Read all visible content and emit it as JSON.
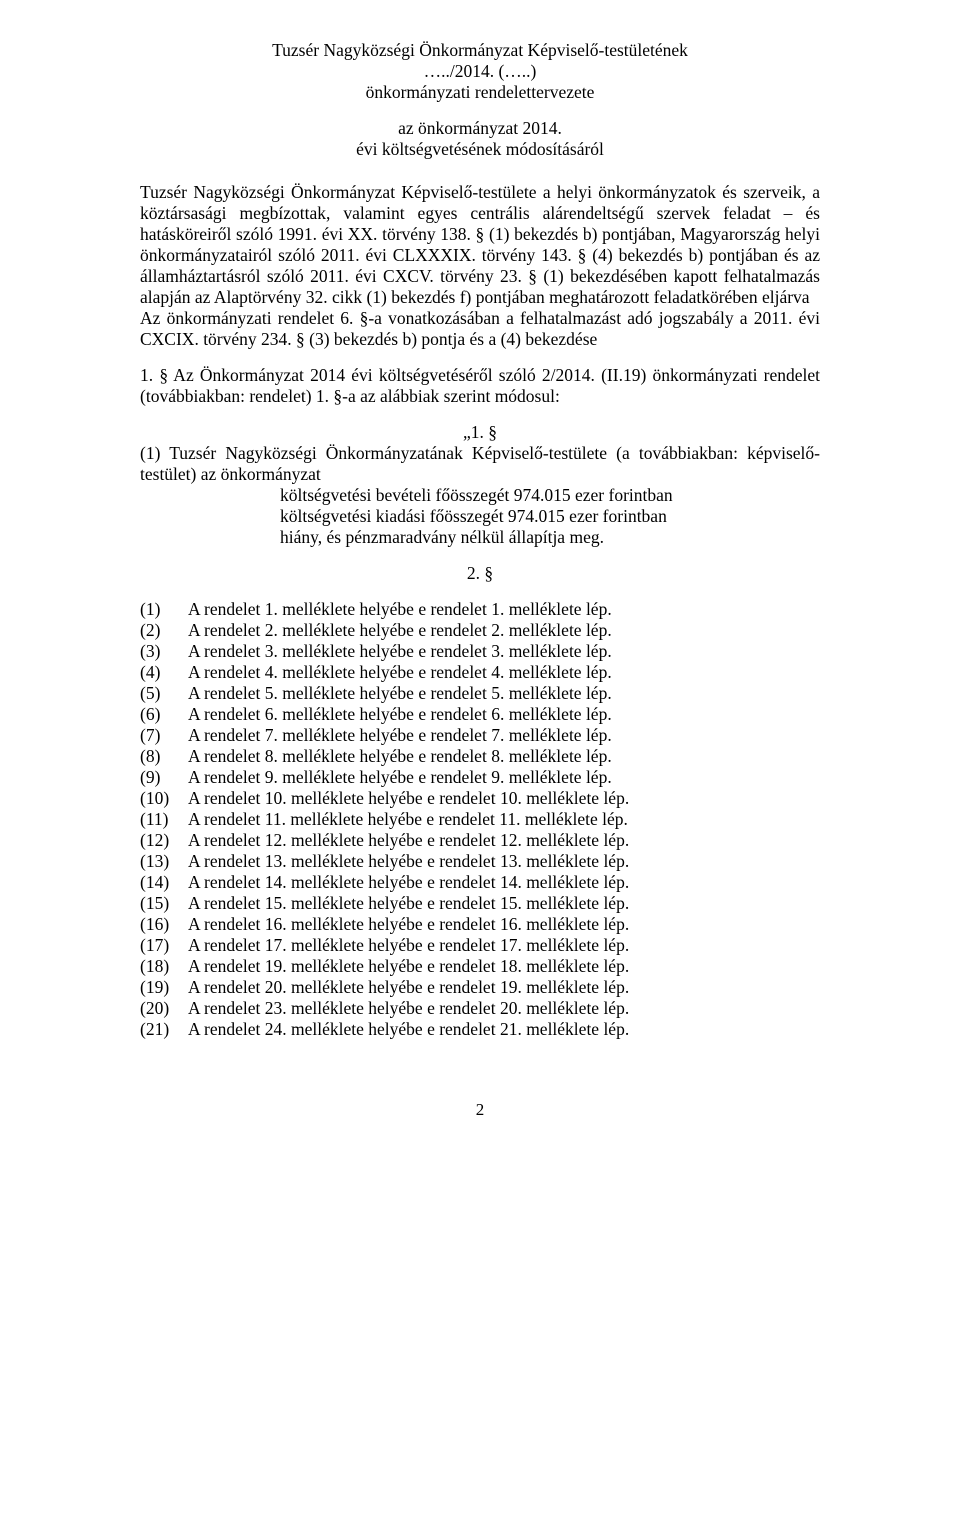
{
  "header": {
    "line1": "Tuzsér Nagyközségi Önkormányzat Képviselő-testületének",
    "line2": "…../2014. (…..)",
    "line3": "önkormányzati rendelettervezete",
    "line4": "az önkormányzat 2014.",
    "line5": "évi költségvetésének módosításáról"
  },
  "body1": "Tuzsér Nagyközségi Önkormányzat Képviselő-testülete a helyi önkormányzatok és szerveik, a köztársasági megbízottak, valamint egyes centrális alárendeltségű szervek feladat – és hatásköreiről szóló 1991. évi XX. törvény 138. § (1) bekezdés b) pontjában, Magyarország helyi önkormányzatairól szóló 2011. évi CLXXXIX. törvény 143. § (4) bekezdés b) pontjában és az államháztartásról szóló 2011. évi CXCV. törvény 23. § (1) bekezdésében kapott felhatalmazás alapján az Alaptörvény 32. cikk (1) bekezdés f) pontjában meghatározott feladatkörében eljárva",
  "body2": "Az önkormányzati rendelet 6. §-a vonatkozásában a felhatalmazást adó jogszabály a 2011. évi CXCIX. törvény 234. § (3) bekezdés b) pontja és a (4) bekezdése",
  "body3": "1. § Az Önkormányzat 2014 évi költségvetéséről szóló 2/2014. (II.19) önkormányzati rendelet (továbbiakban: rendelet) 1. §-a az alábbiak szerint módosul:",
  "section1_heading": "„1. §",
  "section1_para": "(1) Tuzsér Nagyközségi  Önkormányzatának Képviselő-testülete (a továbbiakban: képviselő-testület) az önkormányzat",
  "section1_lines": [
    "költségvetési bevételi főösszegét 974.015 ezer forintban",
    "költségvetési kiadási főösszegét 974.015 ezer forintban",
    "hiány, és pénzmaradvány nélkül állapítja meg."
  ],
  "section2_heading": "2. §",
  "list": [
    {
      "num": "(1)",
      "text": "A rendelet 1. melléklete helyébe e rendelet 1. melléklete lép."
    },
    {
      "num": "(2)",
      "text": "A rendelet 2. melléklete helyébe e rendelet 2. melléklete lép."
    },
    {
      "num": "(3)",
      "text": "A rendelet 3. melléklete helyébe e rendelet 3. melléklete lép."
    },
    {
      "num": "(4)",
      "text": "A rendelet 4. melléklete helyébe e rendelet 4. melléklete lép."
    },
    {
      "num": "(5)",
      "text": "A rendelet 5. melléklete helyébe e rendelet 5. melléklete lép."
    },
    {
      "num": "(6)",
      "text": "A rendelet 6. melléklete helyébe e rendelet 6. melléklete lép."
    },
    {
      "num": "(7)",
      "text": "A rendelet 7. melléklete helyébe e rendelet 7. melléklete lép."
    },
    {
      "num": "(8)",
      "text": "A rendelet 8. melléklete helyébe e rendelet 8. melléklete lép."
    },
    {
      "num": "(9)",
      "text": "A rendelet 9. melléklete helyébe e rendelet 9. melléklete lép."
    },
    {
      "num": "(10)",
      "text": "A rendelet 10. melléklete helyébe e rendelet 10. melléklete lép."
    },
    {
      "num": "(11)",
      "text": "A rendelet 11. melléklete helyébe e rendelet 11. melléklete lép."
    },
    {
      "num": "(12)",
      "text": "A rendelet 12. melléklete helyébe e rendelet 12. melléklete lép."
    },
    {
      "num": "(13)",
      "text": "A rendelet 13. melléklete helyébe e rendelet 13. melléklete lép."
    },
    {
      "num": "(14)",
      "text": "A rendelet 14. melléklete helyébe e rendelet 14. melléklete lép."
    },
    {
      "num": "(15)",
      "text": "A rendelet 15. melléklete helyébe e rendelet 15. melléklete lép."
    },
    {
      "num": "(16)",
      "text": "A rendelet 16. melléklete helyébe e rendelet 16. melléklete lép."
    },
    {
      "num": "(17)",
      "text": "A rendelet 17. melléklete helyébe e rendelet 17. melléklete lép."
    },
    {
      "num": "(18)",
      "text": "A rendelet 19. melléklete helyébe e rendelet 18. melléklete lép."
    },
    {
      "num": "(19)",
      "text": "A rendelet 20. melléklete helyébe e rendelet 19. melléklete lép."
    },
    {
      "num": "(20)",
      "text": "A rendelet 23. melléklete helyébe e rendelet 20. melléklete lép."
    },
    {
      "num": "(21)",
      "text": "A rendelet 24. melléklete helyébe e rendelet 21. melléklete lép."
    }
  ],
  "page_number": "2",
  "style": {
    "font_family": "Times New Roman",
    "font_size_pt": 13,
    "text_color": "#000000",
    "background_color": "#ffffff"
  }
}
